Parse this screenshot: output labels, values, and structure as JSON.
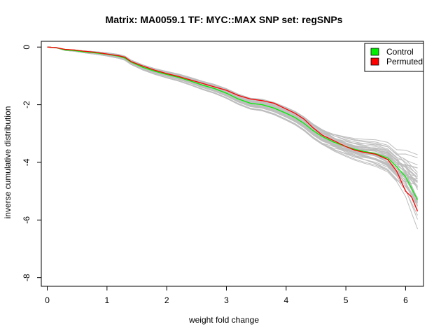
{
  "chart_data": {
    "type": "line",
    "title": "Matrix: MA0059.1 TF: MYC::MAX SNP set: regSNPs",
    "xlabel": "weight fold change",
    "ylabel": "inverse cumulative distribution",
    "xlim": [
      -0.1,
      6.3
    ],
    "ylim": [
      -8.3,
      0.2
    ],
    "x_ticks": [
      0,
      1,
      2,
      3,
      4,
      5,
      6
    ],
    "y_ticks": [
      0,
      -2,
      -4,
      -6,
      -8
    ],
    "grid": false,
    "legend_position": "top-right",
    "x": [
      0.0,
      0.15,
      0.3,
      0.45,
      0.6,
      0.8,
      1.0,
      1.2,
      1.3,
      1.4,
      1.6,
      1.8,
      2.0,
      2.2,
      2.4,
      2.6,
      2.8,
      3.0,
      3.2,
      3.4,
      3.6,
      3.8,
      4.0,
      4.15,
      4.3,
      4.45,
      4.6,
      4.8,
      5.0,
      5.15,
      5.3,
      5.5,
      5.7,
      5.85,
      6.0,
      6.1,
      6.2
    ],
    "series": [
      {
        "name": "Control",
        "color": "#00ee00",
        "values": [
          0.0,
          -0.02,
          -0.1,
          -0.12,
          -0.16,
          -0.2,
          -0.25,
          -0.32,
          -0.38,
          -0.52,
          -0.7,
          -0.84,
          -0.95,
          -1.05,
          -1.18,
          -1.32,
          -1.44,
          -1.6,
          -1.8,
          -1.95,
          -2.0,
          -2.12,
          -2.3,
          -2.45,
          -2.65,
          -2.9,
          -3.1,
          -3.3,
          -3.45,
          -3.55,
          -3.62,
          -3.7,
          -3.85,
          -4.15,
          -4.5,
          -4.9,
          -5.3
        ]
      },
      {
        "name": "Permuted",
        "color": "#ff0000",
        "values": [
          0.0,
          -0.02,
          -0.08,
          -0.1,
          -0.14,
          -0.18,
          -0.24,
          -0.3,
          -0.35,
          -0.5,
          -0.66,
          -0.8,
          -0.92,
          -1.02,
          -1.14,
          -1.26,
          -1.38,
          -1.5,
          -1.68,
          -1.8,
          -1.86,
          -1.95,
          -2.15,
          -2.3,
          -2.5,
          -2.8,
          -3.05,
          -3.25,
          -3.45,
          -3.58,
          -3.65,
          -3.72,
          -3.9,
          -4.3,
          -5.0,
          -5.2,
          -5.7
        ]
      }
    ],
    "background_lines": {
      "name": "permutation",
      "color": "#bebebe",
      "count": 40
    }
  }
}
